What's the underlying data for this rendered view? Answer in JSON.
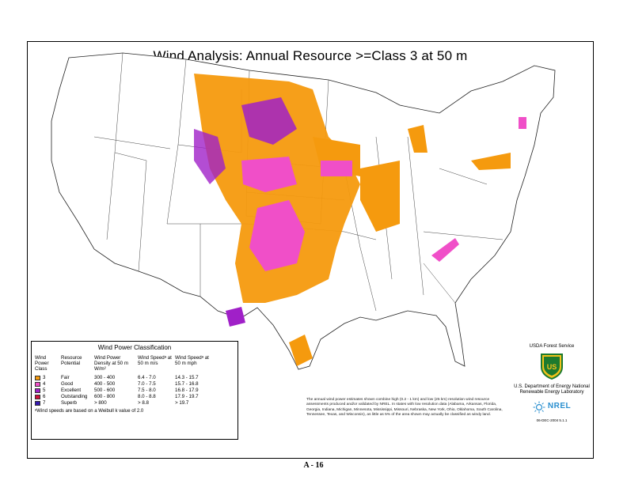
{
  "map": {
    "title": "Wind  Analysis:  Annual Resource >=Class 3 at 50 m"
  },
  "legend": {
    "title": "Wind Power Classification",
    "headers": {
      "class": "Wind Power Class",
      "potential": "Resource Potential",
      "density": "Wind Power Density at 50 m W/m²",
      "speed_ms": "Wind Speedᵃ at 50 m m/s",
      "speed_mph": "Wind Speedᵃ at 50 m mph"
    },
    "rows": [
      {
        "class": "3",
        "potential": "Fair",
        "density": "300 -  400",
        "speed_ms": "6.4 -  7.0",
        "speed_mph": "14.3 - 15.7",
        "color": "#f59a0e"
      },
      {
        "class": "4",
        "potential": "Good",
        "density": "400 -  500",
        "speed_ms": "7.0 -  7.5",
        "speed_mph": "15.7 - 16.8",
        "color": "#f04fc8"
      },
      {
        "class": "5",
        "potential": "Excellent",
        "density": "500 -  600",
        "speed_ms": "7.5 -  8.0",
        "speed_mph": "16.8 - 17.9",
        "color": "#a020c8"
      },
      {
        "class": "6",
        "potential": "Outstanding",
        "density": "600 -  800",
        "speed_ms": "8.0 -  8.8",
        "speed_mph": "17.9 - 19.7",
        "color": "#d0103a"
      },
      {
        "class": "7",
        "potential": "Superb",
        "density": "> 800",
        "speed_ms": "> 8.8",
        "speed_mph": "> 19.7",
        "color": "#3418b0"
      }
    ],
    "footnote": "ᵃWind speeds are based on a Weibull k value of 2.0"
  },
  "agencies": {
    "usda": "USDA Forest Service",
    "shield_letters": "US",
    "doe": "U.S. Department of Energy National Renewable Energy Laboratory",
    "nrel": "NREL",
    "date": "06-DEC-2004 5.1.1"
  },
  "note": "The annual wind power estimates shown combine high (0.2 - 1 km) and low (25 km) resolution wind resource assessments produced and/or validated by NREL.  In states with low resolution data (Alabama, Arkansas,  Florida, Georgia, Indiana, Michigan, Minnesota, Mississippi, Missouri, Nebraska,  New York, Ohio, Oklahoma, South Carolina, Tennessee, Texas, and Wisconsin), as little as 5% of the area shown may actually be classified as windy land.",
  "page_number": "A - 16",
  "colors": {
    "class3": "#f59a0e",
    "class4": "#f04fc8",
    "class5": "#a020c8",
    "class6": "#d0103a",
    "class7": "#3418b0",
    "usda_green": "#1d7a2e",
    "usda_yellow": "#f2c21b",
    "nrel_blue": "#2a8fcf"
  }
}
